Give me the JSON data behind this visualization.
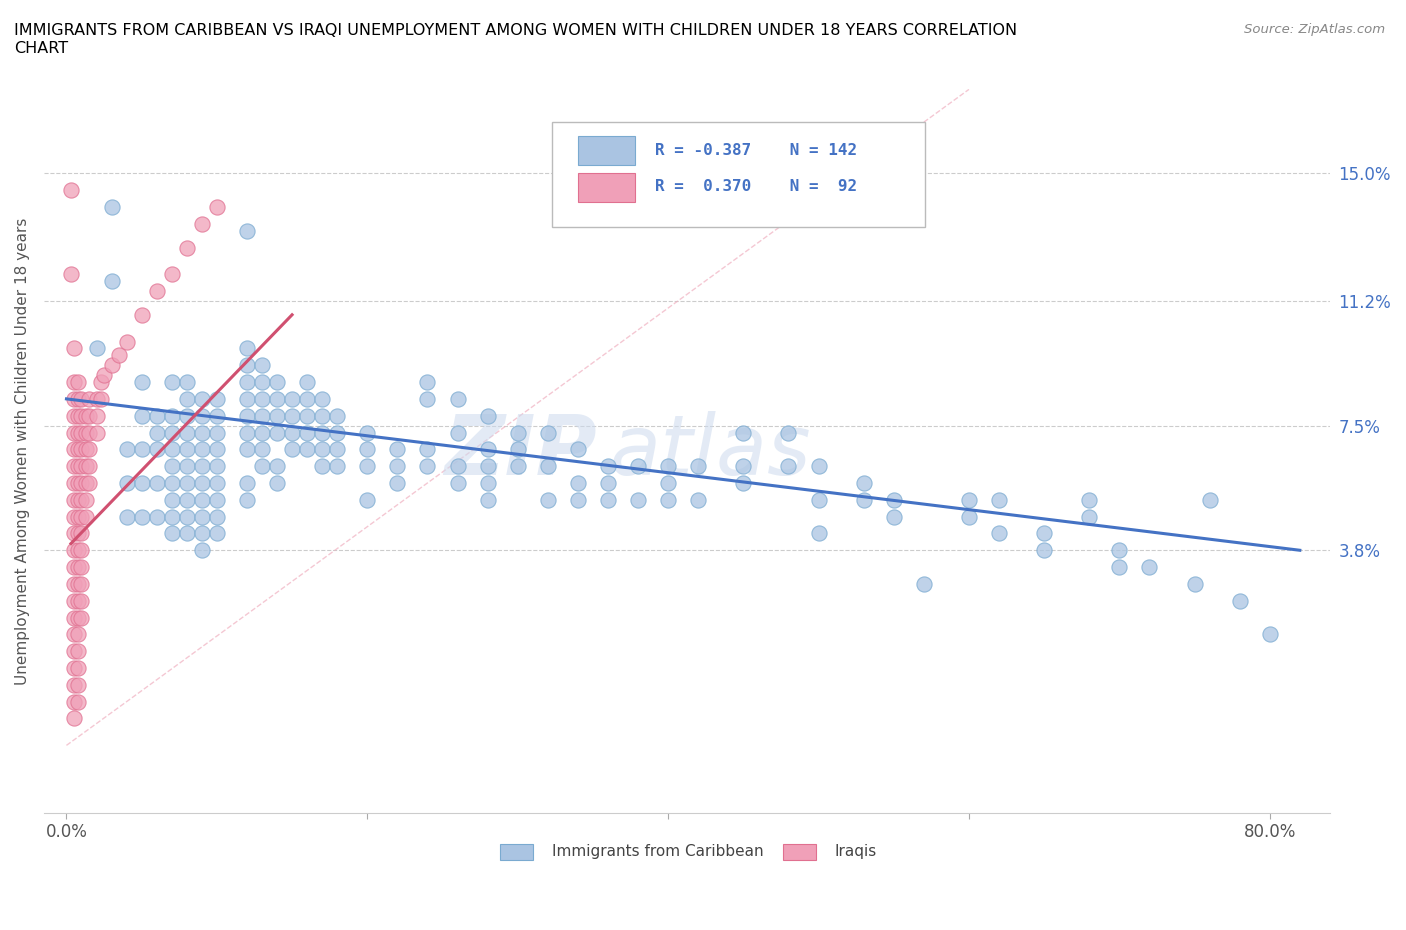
{
  "title": "IMMIGRANTS FROM CARIBBEAN VS IRAQI UNEMPLOYMENT AMONG WOMEN WITH CHILDREN UNDER 18 YEARS CORRELATION\nCHART",
  "source": "Source: ZipAtlas.com",
  "ylabel": "Unemployment Among Women with Children Under 18 years",
  "y_ticks": [
    0.038,
    0.075,
    0.112,
    0.15
  ],
  "y_tick_labels": [
    "3.8%",
    "7.5%",
    "11.2%",
    "15.0%"
  ],
  "xlim": [
    -0.015,
    0.84
  ],
  "ylim": [
    -0.04,
    0.175
  ],
  "caribbean_color": "#aac4e2",
  "iraqi_color": "#f0a0b8",
  "caribbean_edge": "#7aaad0",
  "iraqi_edge": "#e07090",
  "caribbean_line_color": "#4472c4",
  "iraqi_line_color": "#d05070",
  "grid_color": "#cccccc",
  "legend_text_color": "#4472c4",
  "R_caribbean": -0.387,
  "N_caribbean": 142,
  "R_iraqi": 0.37,
  "N_iraqi": 92,
  "caribbean_scatter": [
    [
      0.02,
      0.098
    ],
    [
      0.03,
      0.14
    ],
    [
      0.03,
      0.118
    ],
    [
      0.04,
      0.058
    ],
    [
      0.04,
      0.068
    ],
    [
      0.04,
      0.048
    ],
    [
      0.05,
      0.088
    ],
    [
      0.05,
      0.068
    ],
    [
      0.05,
      0.078
    ],
    [
      0.05,
      0.058
    ],
    [
      0.05,
      0.048
    ],
    [
      0.06,
      0.078
    ],
    [
      0.06,
      0.068
    ],
    [
      0.06,
      0.058
    ],
    [
      0.06,
      0.048
    ],
    [
      0.06,
      0.073
    ],
    [
      0.07,
      0.088
    ],
    [
      0.07,
      0.078
    ],
    [
      0.07,
      0.073
    ],
    [
      0.07,
      0.068
    ],
    [
      0.07,
      0.063
    ],
    [
      0.07,
      0.058
    ],
    [
      0.07,
      0.053
    ],
    [
      0.07,
      0.048
    ],
    [
      0.07,
      0.043
    ],
    [
      0.08,
      0.088
    ],
    [
      0.08,
      0.083
    ],
    [
      0.08,
      0.078
    ],
    [
      0.08,
      0.073
    ],
    [
      0.08,
      0.068
    ],
    [
      0.08,
      0.063
    ],
    [
      0.08,
      0.058
    ],
    [
      0.08,
      0.053
    ],
    [
      0.08,
      0.048
    ],
    [
      0.08,
      0.043
    ],
    [
      0.09,
      0.083
    ],
    [
      0.09,
      0.078
    ],
    [
      0.09,
      0.073
    ],
    [
      0.09,
      0.068
    ],
    [
      0.09,
      0.063
    ],
    [
      0.09,
      0.058
    ],
    [
      0.09,
      0.053
    ],
    [
      0.09,
      0.048
    ],
    [
      0.09,
      0.043
    ],
    [
      0.09,
      0.038
    ],
    [
      0.1,
      0.083
    ],
    [
      0.1,
      0.078
    ],
    [
      0.1,
      0.073
    ],
    [
      0.1,
      0.068
    ],
    [
      0.1,
      0.063
    ],
    [
      0.1,
      0.058
    ],
    [
      0.1,
      0.053
    ],
    [
      0.1,
      0.048
    ],
    [
      0.1,
      0.043
    ],
    [
      0.12,
      0.133
    ],
    [
      0.12,
      0.098
    ],
    [
      0.12,
      0.093
    ],
    [
      0.12,
      0.088
    ],
    [
      0.12,
      0.083
    ],
    [
      0.12,
      0.078
    ],
    [
      0.12,
      0.073
    ],
    [
      0.12,
      0.068
    ],
    [
      0.12,
      0.058
    ],
    [
      0.12,
      0.053
    ],
    [
      0.13,
      0.093
    ],
    [
      0.13,
      0.088
    ],
    [
      0.13,
      0.083
    ],
    [
      0.13,
      0.078
    ],
    [
      0.13,
      0.073
    ],
    [
      0.13,
      0.068
    ],
    [
      0.13,
      0.063
    ],
    [
      0.14,
      0.088
    ],
    [
      0.14,
      0.083
    ],
    [
      0.14,
      0.078
    ],
    [
      0.14,
      0.073
    ],
    [
      0.14,
      0.063
    ],
    [
      0.14,
      0.058
    ],
    [
      0.15,
      0.083
    ],
    [
      0.15,
      0.078
    ],
    [
      0.15,
      0.073
    ],
    [
      0.15,
      0.068
    ],
    [
      0.16,
      0.088
    ],
    [
      0.16,
      0.083
    ],
    [
      0.16,
      0.078
    ],
    [
      0.16,
      0.073
    ],
    [
      0.16,
      0.068
    ],
    [
      0.17,
      0.083
    ],
    [
      0.17,
      0.078
    ],
    [
      0.17,
      0.073
    ],
    [
      0.17,
      0.068
    ],
    [
      0.17,
      0.063
    ],
    [
      0.18,
      0.078
    ],
    [
      0.18,
      0.073
    ],
    [
      0.18,
      0.068
    ],
    [
      0.18,
      0.063
    ],
    [
      0.2,
      0.073
    ],
    [
      0.2,
      0.068
    ],
    [
      0.2,
      0.063
    ],
    [
      0.2,
      0.053
    ],
    [
      0.22,
      0.068
    ],
    [
      0.22,
      0.063
    ],
    [
      0.22,
      0.058
    ],
    [
      0.24,
      0.088
    ],
    [
      0.24,
      0.083
    ],
    [
      0.24,
      0.068
    ],
    [
      0.24,
      0.063
    ],
    [
      0.26,
      0.083
    ],
    [
      0.26,
      0.073
    ],
    [
      0.26,
      0.063
    ],
    [
      0.26,
      0.058
    ],
    [
      0.28,
      0.078
    ],
    [
      0.28,
      0.068
    ],
    [
      0.28,
      0.063
    ],
    [
      0.28,
      0.058
    ],
    [
      0.28,
      0.053
    ],
    [
      0.3,
      0.073
    ],
    [
      0.3,
      0.068
    ],
    [
      0.3,
      0.063
    ],
    [
      0.32,
      0.073
    ],
    [
      0.32,
      0.063
    ],
    [
      0.32,
      0.053
    ],
    [
      0.34,
      0.068
    ],
    [
      0.34,
      0.058
    ],
    [
      0.34,
      0.053
    ],
    [
      0.36,
      0.063
    ],
    [
      0.36,
      0.058
    ],
    [
      0.36,
      0.053
    ],
    [
      0.38,
      0.063
    ],
    [
      0.38,
      0.053
    ],
    [
      0.4,
      0.063
    ],
    [
      0.4,
      0.058
    ],
    [
      0.4,
      0.053
    ],
    [
      0.42,
      0.063
    ],
    [
      0.42,
      0.053
    ],
    [
      0.45,
      0.073
    ],
    [
      0.45,
      0.063
    ],
    [
      0.45,
      0.058
    ],
    [
      0.48,
      0.073
    ],
    [
      0.48,
      0.063
    ],
    [
      0.5,
      0.063
    ],
    [
      0.5,
      0.053
    ],
    [
      0.5,
      0.043
    ],
    [
      0.53,
      0.058
    ],
    [
      0.53,
      0.053
    ],
    [
      0.55,
      0.053
    ],
    [
      0.55,
      0.048
    ],
    [
      0.57,
      0.028
    ],
    [
      0.6,
      0.053
    ],
    [
      0.6,
      0.048
    ],
    [
      0.62,
      0.053
    ],
    [
      0.62,
      0.043
    ],
    [
      0.65,
      0.043
    ],
    [
      0.65,
      0.038
    ],
    [
      0.68,
      0.053
    ],
    [
      0.68,
      0.048
    ],
    [
      0.7,
      0.038
    ],
    [
      0.7,
      0.033
    ],
    [
      0.72,
      0.033
    ],
    [
      0.75,
      0.028
    ],
    [
      0.76,
      0.053
    ],
    [
      0.78,
      0.023
    ],
    [
      0.8,
      0.013
    ]
  ],
  "iraqi_scatter": [
    [
      0.003,
      0.145
    ],
    [
      0.003,
      0.12
    ],
    [
      0.005,
      0.098
    ],
    [
      0.005,
      0.088
    ],
    [
      0.005,
      0.083
    ],
    [
      0.005,
      0.078
    ],
    [
      0.005,
      0.073
    ],
    [
      0.005,
      0.068
    ],
    [
      0.005,
      0.063
    ],
    [
      0.005,
      0.058
    ],
    [
      0.005,
      0.053
    ],
    [
      0.005,
      0.048
    ],
    [
      0.005,
      0.043
    ],
    [
      0.005,
      0.038
    ],
    [
      0.005,
      0.033
    ],
    [
      0.005,
      0.028
    ],
    [
      0.005,
      0.023
    ],
    [
      0.005,
      0.018
    ],
    [
      0.005,
      0.013
    ],
    [
      0.005,
      0.008
    ],
    [
      0.005,
      0.003
    ],
    [
      0.005,
      -0.002
    ],
    [
      0.005,
      -0.007
    ],
    [
      0.005,
      -0.012
    ],
    [
      0.008,
      0.088
    ],
    [
      0.008,
      0.083
    ],
    [
      0.008,
      0.078
    ],
    [
      0.008,
      0.073
    ],
    [
      0.008,
      0.068
    ],
    [
      0.008,
      0.063
    ],
    [
      0.008,
      0.058
    ],
    [
      0.008,
      0.053
    ],
    [
      0.008,
      0.048
    ],
    [
      0.008,
      0.043
    ],
    [
      0.008,
      0.038
    ],
    [
      0.008,
      0.033
    ],
    [
      0.008,
      0.028
    ],
    [
      0.008,
      0.023
    ],
    [
      0.008,
      0.018
    ],
    [
      0.008,
      0.013
    ],
    [
      0.008,
      0.008
    ],
    [
      0.008,
      0.003
    ],
    [
      0.008,
      -0.002
    ],
    [
      0.008,
      -0.007
    ],
    [
      0.01,
      0.083
    ],
    [
      0.01,
      0.078
    ],
    [
      0.01,
      0.073
    ],
    [
      0.01,
      0.068
    ],
    [
      0.01,
      0.063
    ],
    [
      0.01,
      0.058
    ],
    [
      0.01,
      0.053
    ],
    [
      0.01,
      0.048
    ],
    [
      0.01,
      0.043
    ],
    [
      0.01,
      0.038
    ],
    [
      0.01,
      0.033
    ],
    [
      0.01,
      0.028
    ],
    [
      0.01,
      0.023
    ],
    [
      0.01,
      0.018
    ],
    [
      0.013,
      0.078
    ],
    [
      0.013,
      0.073
    ],
    [
      0.013,
      0.068
    ],
    [
      0.013,
      0.063
    ],
    [
      0.013,
      0.058
    ],
    [
      0.013,
      0.053
    ],
    [
      0.013,
      0.048
    ],
    [
      0.015,
      0.083
    ],
    [
      0.015,
      0.078
    ],
    [
      0.015,
      0.073
    ],
    [
      0.015,
      0.068
    ],
    [
      0.015,
      0.063
    ],
    [
      0.015,
      0.058
    ],
    [
      0.02,
      0.083
    ],
    [
      0.02,
      0.078
    ],
    [
      0.02,
      0.073
    ],
    [
      0.023,
      0.088
    ],
    [
      0.023,
      0.083
    ],
    [
      0.025,
      0.09
    ],
    [
      0.03,
      0.093
    ],
    [
      0.035,
      0.096
    ],
    [
      0.04,
      0.1
    ],
    [
      0.05,
      0.108
    ],
    [
      0.06,
      0.115
    ],
    [
      0.07,
      0.12
    ],
    [
      0.08,
      0.128
    ],
    [
      0.09,
      0.135
    ],
    [
      0.1,
      0.14
    ]
  ],
  "caribb_line_x": [
    0.0,
    0.82
  ],
  "caribb_line_y_start": 0.083,
  "caribb_line_y_end": 0.038,
  "iraqi_line_x": [
    0.003,
    0.15
  ],
  "iraqi_line_y_start": 0.04,
  "iraqi_line_y_end": 0.108
}
